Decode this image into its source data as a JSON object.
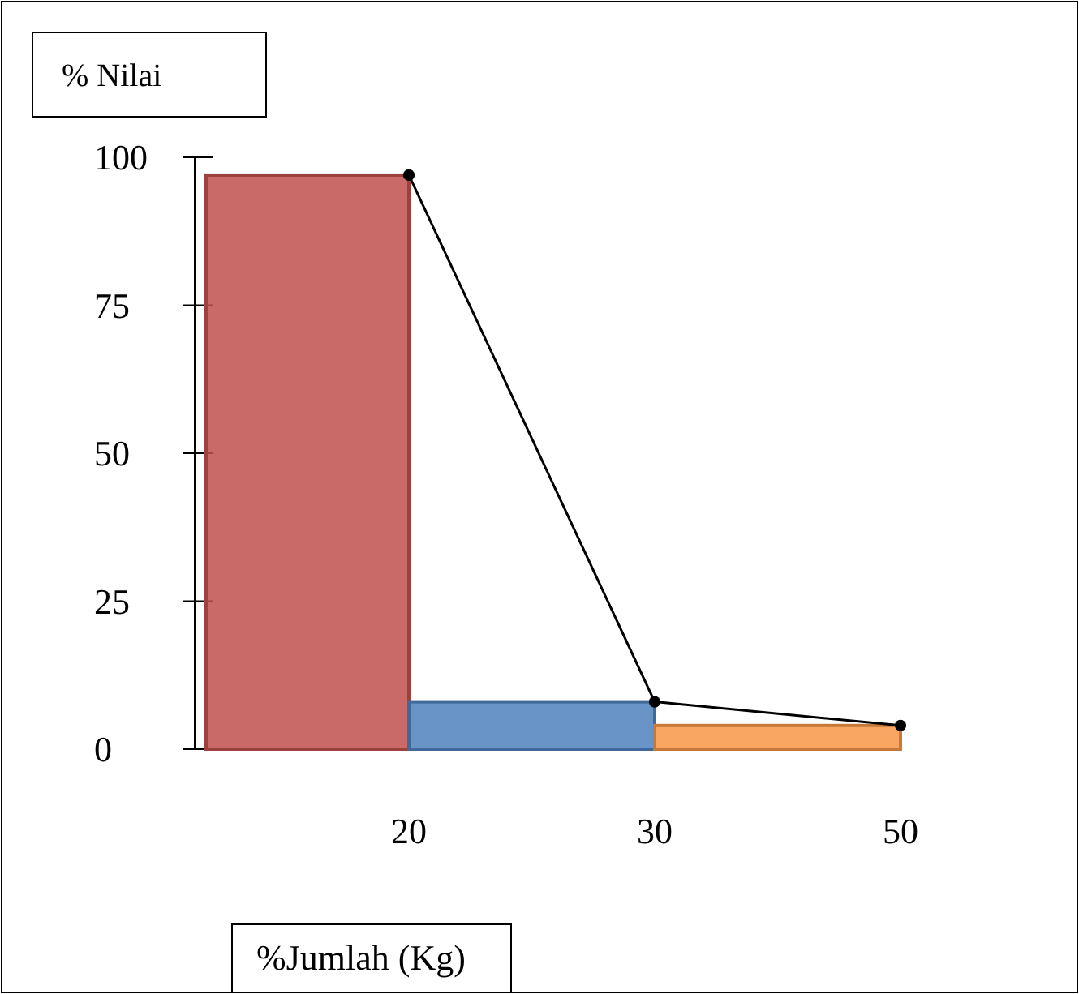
{
  "chart_data": {
    "type": "bar",
    "xlabel": "%Jumlah (Kg)",
    "ylabel": "% Nilai",
    "categories": [
      "20",
      "30",
      "50"
    ],
    "ylim": [
      0,
      100
    ],
    "yticks": [
      0,
      25,
      50,
      75,
      100
    ],
    "series": [
      {
        "colors": [
          "#c0504d",
          "#4f81bd",
          "#f79646"
        ],
        "values": [
          97,
          8,
          4
        ]
      },
      {
        "type": "line",
        "color": "#000000",
        "values": [
          97,
          8,
          4
        ]
      }
    ],
    "marker": "circle",
    "line_style": "solid",
    "grid": false
  }
}
